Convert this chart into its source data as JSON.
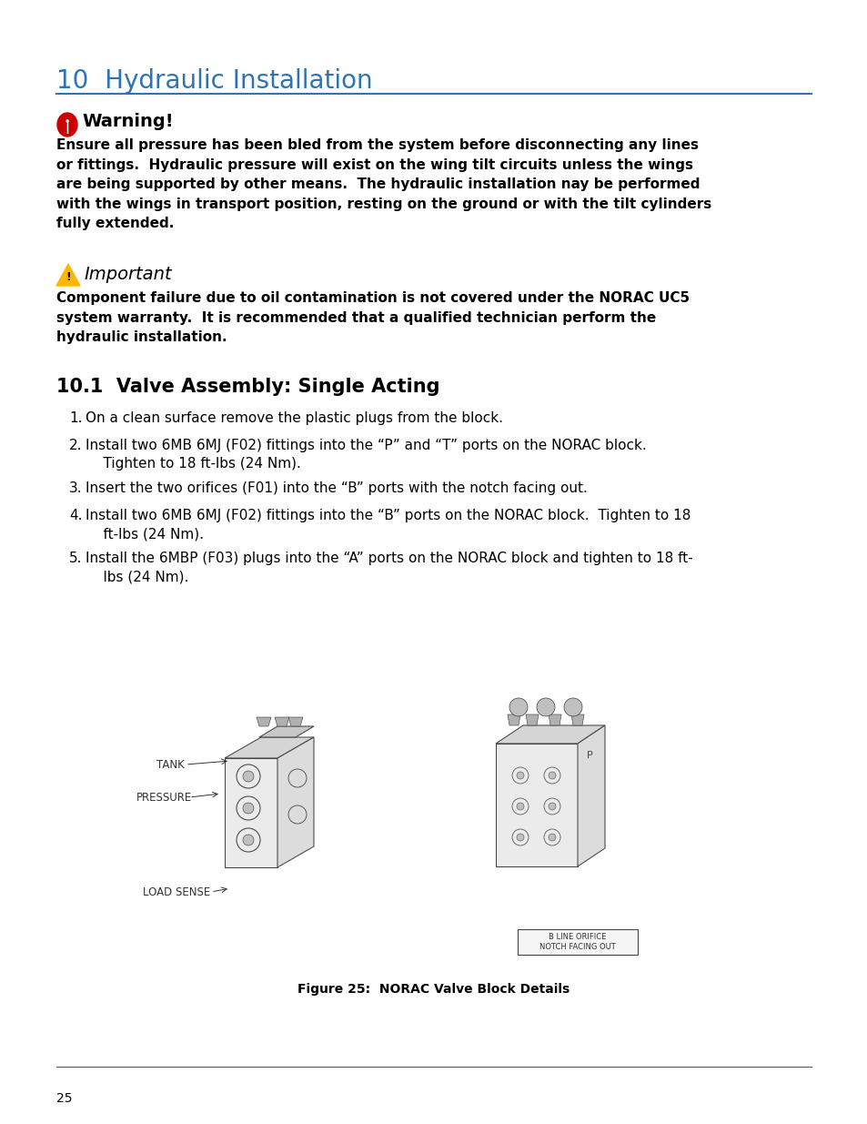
{
  "page_bg": "#ffffff",
  "title": "10  Hydraulic Installation",
  "title_color": "#2E74B5",
  "title_fontsize": 20,
  "warning_title": "Warning!",
  "warning_text": "Ensure all pressure has been bled from the system before disconnecting any lines\nor fittings.  Hydraulic pressure will exist on the wing tilt circuits unless the wings\nare being supported by other means.  The hydraulic installation nay be performed\nwith the wings in transport position, resting on the ground or with the tilt cylinders\nfully extended.",
  "important_title": "Important",
  "important_text": "Component failure due to oil contamination is not covered under the NORAC UC5\nsystem warranty.  It is recommended that a qualified technician perform the\nhydraulic installation.",
  "section_title": "10.1  Valve Assembly: Single Acting",
  "steps": [
    "On a clean surface remove the plastic plugs from the block.",
    "Install two 6MB 6MJ (F02) fittings into the “P” and “T” ports on the NORAC block.\n    Tighten to 18 ft-lbs (24 Nm).",
    "Insert the two orifices (F01) into the “B” ports with the notch facing out.",
    "Install two 6MB 6MJ (F02) fittings into the “B” ports on the NORAC block.  Tighten to 18\n    ft-lbs (24 Nm).",
    "Install the 6MBP (F03) plugs into the “A” ports on the NORAC block and tighten to 18 ft-\n    lbs (24 Nm)."
  ],
  "figure_caption": "Figure 25:  NORAC Valve Block Details",
  "page_number": "25",
  "body_fontsize": 11,
  "section_fontsize": 15,
  "label_color": "#333333",
  "label_fs": 8.5,
  "lm": 62,
  "rm": 892
}
